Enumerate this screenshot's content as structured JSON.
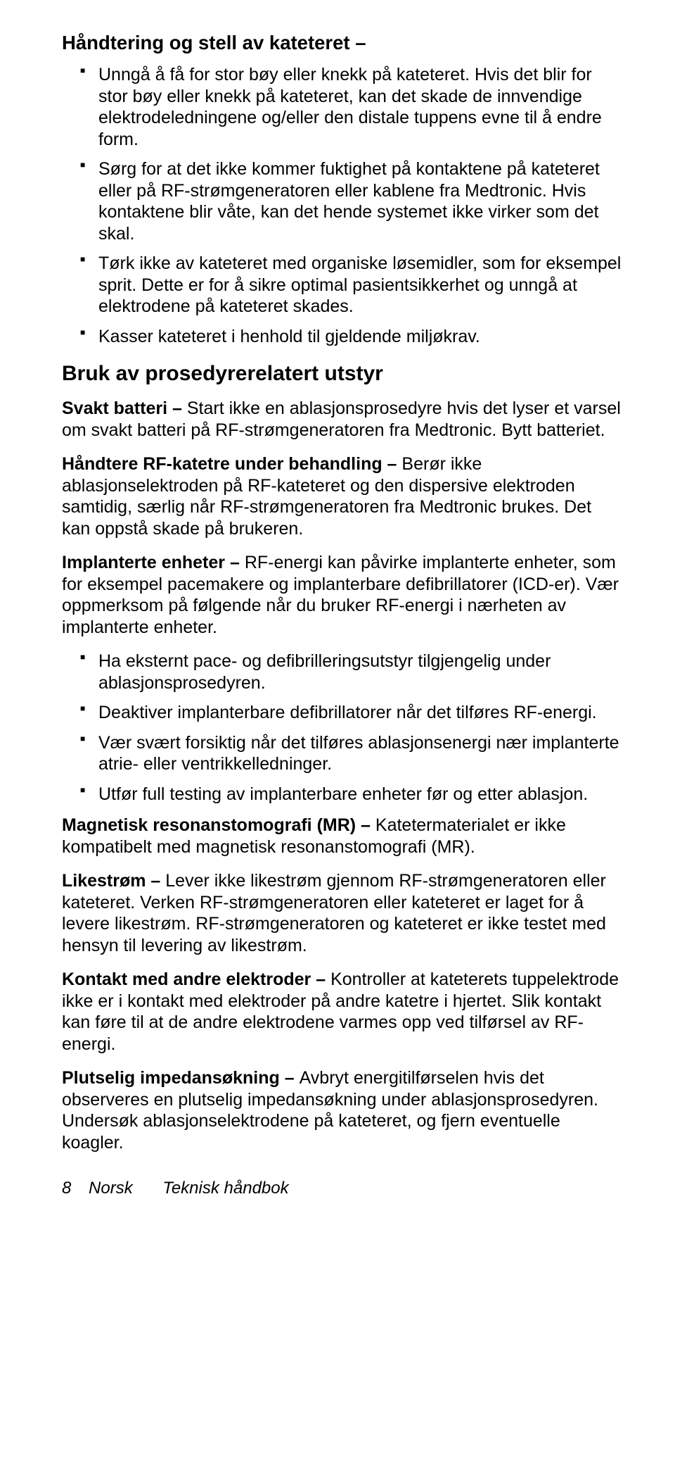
{
  "section1": {
    "heading": "Håndtering og stell av kateteret –",
    "bullets": [
      "Unngå å få for stor bøy eller knekk på kateteret. Hvis det blir for stor bøy eller knekk på kateteret, kan det skade de innvendige elektrodeledningene og/eller den distale tuppens evne til å endre form.",
      "Sørg for at det ikke kommer fuktighet på kontaktene på kateteret eller på RF-strømgeneratoren eller kablene fra Medtronic. Hvis kontaktene blir våte, kan det hende systemet ikke virker som det skal.",
      "Tørk ikke av kateteret med organiske løsemidler, som for eksempel sprit. Dette er for å sikre optimal pasientsikkerhet og unngå at elektrodene på kateteret skades.",
      "Kasser kateteret i henhold til gjeldende miljøkrav."
    ]
  },
  "section2": {
    "heading": "Bruk av prosedyrerelatert utstyr",
    "p1_lead": "Svakt batteri – ",
    "p1_body": "Start ikke en ablasjonsprosedyre hvis det lyser et varsel om svakt batteri på RF-strømgeneratoren fra Medtronic. Bytt batteriet.",
    "p2_lead": "Håndtere RF-katetre under behandling – ",
    "p2_body": "Berør ikke ablasjonselektroden på RF-kateteret og den dispersive elektroden samtidig, særlig når RF-strømgeneratoren fra Medtronic brukes. Det kan oppstå skade på brukeren.",
    "p3_lead": "Implanterte enheter – ",
    "p3_body": "RF-energi kan påvirke implanterte enheter, som for eksempel pacemakere og implanterbare defibrillatorer (ICD-er). Vær oppmerksom på følgende når du bruker RF-energi i nærheten av implanterte enheter.",
    "bullets": [
      "Ha eksternt pace- og defibrilleringsutstyr tilgjengelig under ablasjonsprosedyren.",
      "Deaktiver implanterbare defibrillatorer når det tilføres RF-energi.",
      "Vær svært forsiktig når det tilføres ablasjonsenergi nær implanterte atrie- eller ventrikkelledninger.",
      "Utfør full testing av implanterbare enheter før og etter ablasjon."
    ],
    "p4_lead": "Magnetisk resonanstomografi (MR) – ",
    "p4_body": "Katetermaterialet er ikke kompatibelt med magnetisk resonanstomografi (MR).",
    "p5_lead": "Likestrøm – ",
    "p5_body": "Lever ikke likestrøm gjennom RF-strømgeneratoren eller kateteret. Verken RF-strømgeneratoren eller kateteret er laget for å levere likestrøm. RF-strømgeneratoren og kateteret er ikke testet med hensyn til levering av likestrøm.",
    "p6_lead": "Kontakt med andre elektroder – ",
    "p6_body": "Kontroller at kateterets tuppelektrode ikke er i kontakt med elektroder på andre katetre i hjertet. Slik kontakt kan føre til at de andre elektrodene varmes opp ved tilførsel av RF-energi.",
    "p7_lead": "Plutselig impedansøkning – ",
    "p7_body": "Avbryt energitilførselen hvis det observeres en plutselig impedansøkning under ablasjonsprosedyren. Undersøk ablasjonselektrodene på kateteret, og fjern eventuelle koagler."
  },
  "footer": {
    "pagenum": "8",
    "lang": "Norsk",
    "title": "Teknisk håndbok"
  }
}
